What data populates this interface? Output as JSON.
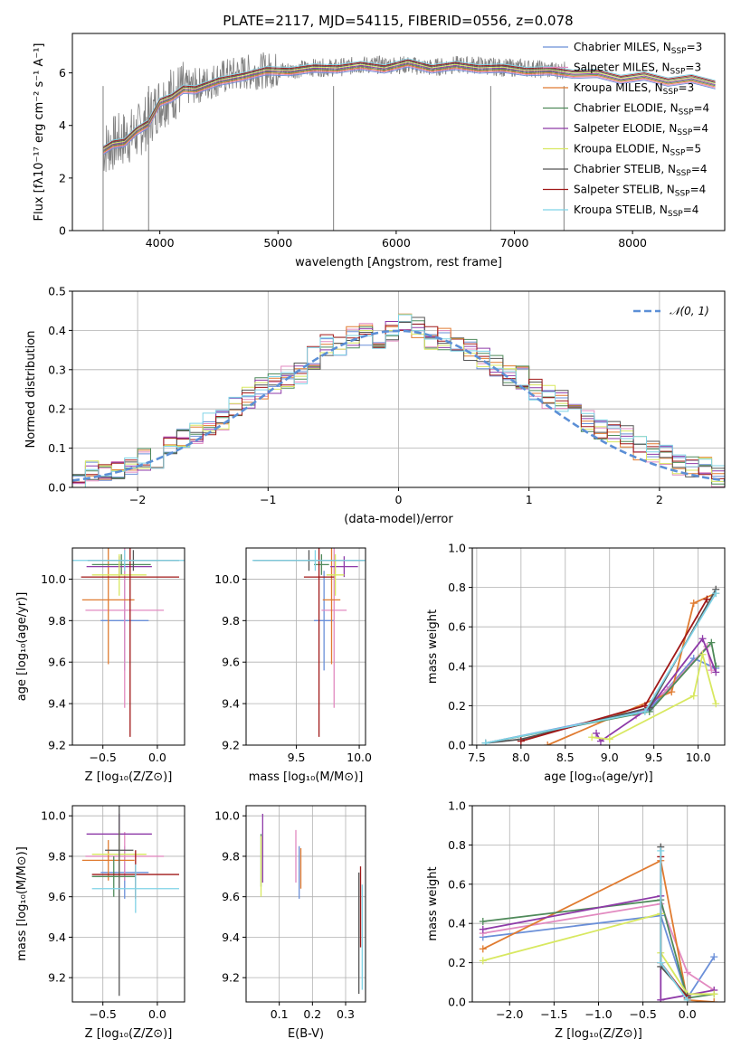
{
  "figure_title": "PLATE=2117, MJD=54115, FIBERID=0556, z=0.078",
  "colors": {
    "Chabrier MILES": "#6a8fd8",
    "Salpeter MILES": "#e28ac0",
    "Kroupa MILES": "#e07b30",
    "Chabrier ELODIE": "#4f8a5a",
    "Salpeter ELODIE": "#8e3aa8",
    "Kroupa ELODIE": "#d8e860",
    "Chabrier STELIB": "#555555",
    "Salpeter STELIB": "#a01818",
    "Kroupa STELIB": "#7fd3e6",
    "data": "#808080",
    "normal_curve": "#5b8fd6"
  },
  "chart_data": [
    {
      "id": "spectrum",
      "type": "line",
      "title": "PLATE=2117, MJD=54115, FIBERID=0556, z=0.078",
      "xlabel": "wavelength [Angstrom, rest frame]",
      "ylabel": "Flux [fλ10⁻¹⁷ erg cm⁻² s⁻¹ A⁻¹]",
      "xlim": [
        3260,
        8780
      ],
      "ylim": [
        0,
        7.5
      ],
      "xticks": [
        4000,
        5000,
        6000,
        7000,
        8000
      ],
      "yticks": [
        0,
        2,
        4,
        6
      ],
      "grid": false,
      "legend_position": "right",
      "legend": [
        {
          "name": "Chabrier MILES, N",
          "sub": "SSP",
          "suffix": "=3"
        },
        {
          "name": "Salpeter MILES, N",
          "sub": "SSP",
          "suffix": "=3"
        },
        {
          "name": "Kroupa MILES, N",
          "sub": "SSP",
          "suffix": "=3"
        },
        {
          "name": "Chabrier ELODIE, N",
          "sub": "SSP",
          "suffix": "=4"
        },
        {
          "name": "Salpeter ELODIE, N",
          "sub": "SSP",
          "suffix": "=4"
        },
        {
          "name": "Kroupa ELODIE, N",
          "sub": "SSP",
          "suffix": "=5"
        },
        {
          "name": "Chabrier STELIB, N",
          "sub": "SSP",
          "suffix": "=4"
        },
        {
          "name": "Salpeter STELIB, N",
          "sub": "SSP",
          "suffix": "=4"
        },
        {
          "name": "Kroupa STELIB, N",
          "sub": "SSP",
          "suffix": "=4"
        }
      ],
      "data_series": {
        "name": "data",
        "x": [
          3520,
          3600,
          3700,
          3800,
          3900,
          4000,
          4100,
          4200,
          4300,
          4400,
          4500,
          4700,
          4900,
          5100,
          5300,
          5500,
          5700,
          5900,
          6100,
          6300,
          6500,
          6700,
          6900,
          7100,
          7300,
          7450
        ],
        "y": [
          3.1,
          3.3,
          3.5,
          3.7,
          4.2,
          4.9,
          5.2,
          5.4,
          5.5,
          5.6,
          5.8,
          6.0,
          6.1,
          6.1,
          6.2,
          6.2,
          6.3,
          6.3,
          6.3,
          6.2,
          6.3,
          6.3,
          6.2,
          6.2,
          6.1,
          6.1
        ]
      },
      "model_series": {
        "x": [
          3520,
          3600,
          3700,
          3800,
          3900,
          4000,
          4100,
          4200,
          4300,
          4500,
          4700,
          4900,
          5100,
          5300,
          5500,
          5700,
          5900,
          6100,
          6300,
          6500,
          6700,
          6900,
          7100,
          7300,
          7500,
          7700,
          7900,
          8100,
          8300,
          8500,
          8700
        ],
        "y": [
          3.1,
          3.2,
          3.4,
          3.7,
          4.1,
          4.8,
          5.1,
          5.3,
          5.4,
          5.6,
          5.9,
          6.0,
          6.1,
          6.1,
          6.2,
          6.2,
          6.2,
          6.3,
          6.2,
          6.2,
          6.2,
          6.1,
          6.1,
          6.0,
          6.0,
          5.9,
          5.8,
          5.8,
          5.7,
          5.7,
          5.6
        ]
      }
    },
    {
      "id": "residuals",
      "type": "line",
      "xlabel": "(data-model)/error",
      "ylabel": "Normed distribution",
      "xlim": [
        -2.5,
        2.5
      ],
      "ylim": [
        0,
        0.5
      ],
      "xticks": [
        -2,
        -1,
        0,
        1,
        2
      ],
      "yticks": [
        0.0,
        0.1,
        0.2,
        0.3,
        0.4,
        0.5
      ],
      "grid": true,
      "legend_position": "top-right",
      "legend": [
        "𝒩(0, 1)"
      ],
      "bin_edges": [
        -2.5,
        -2.4,
        -2.3,
        -2.2,
        -2.1,
        -2.0,
        -1.9,
        -1.8,
        -1.7,
        -1.6,
        -1.5,
        -1.4,
        -1.3,
        -1.2,
        -1.1,
        -1.0,
        -0.9,
        -0.8,
        -0.7,
        -0.6,
        -0.5,
        -0.4,
        -0.3,
        -0.2,
        -0.1,
        0.0,
        0.1,
        0.2,
        0.3,
        0.4,
        0.5,
        0.6,
        0.7,
        0.8,
        0.9,
        1.0,
        1.1,
        1.2,
        1.3,
        1.4,
        1.5,
        1.6,
        1.7,
        1.8,
        1.9,
        2.0,
        2.1,
        2.2,
        2.3,
        2.4,
        2.5
      ],
      "histogram": [
        0.02,
        0.04,
        0.03,
        0.05,
        0.05,
        0.07,
        0.07,
        0.1,
        0.13,
        0.14,
        0.16,
        0.17,
        0.2,
        0.23,
        0.25,
        0.26,
        0.28,
        0.29,
        0.33,
        0.36,
        0.36,
        0.38,
        0.39,
        0.38,
        0.4,
        0.42,
        0.41,
        0.38,
        0.38,
        0.36,
        0.35,
        0.33,
        0.31,
        0.28,
        0.28,
        0.25,
        0.23,
        0.22,
        0.19,
        0.17,
        0.15,
        0.14,
        0.13,
        0.1,
        0.09,
        0.08,
        0.06,
        0.05,
        0.05,
        0.03
      ]
    },
    {
      "id": "age-vs-Z",
      "type": "scatter",
      "xlabel": "Z [log₁₀(Z/Z⊙)]",
      "ylabel": "age  [log₁₀(age/yr)]",
      "xlim": [
        -0.78,
        0.25
      ],
      "ylim": [
        9.2,
        10.15
      ],
      "xticks": [
        -0.5,
        0.0
      ],
      "yticks": [
        9.2,
        9.4,
        9.6,
        9.8,
        10.0
      ],
      "grid": true,
      "points": [
        {
          "series": "Chabrier MILES",
          "x": -0.3,
          "y": 9.8,
          "xerr": 0.22,
          "yerr": 0.24
        },
        {
          "series": "Salpeter MILES",
          "x": -0.3,
          "y": 9.85,
          "xerr": 0.36,
          "yerr": 0.47
        },
        {
          "series": "Kroupa MILES",
          "x": -0.45,
          "y": 9.9,
          "xerr": 0.24,
          "yerr": 0.31
        },
        {
          "series": "Chabrier ELODIE",
          "x": -0.33,
          "y": 10.07,
          "xerr": 0.27,
          "yerr": 0.05
        },
        {
          "series": "Salpeter ELODIE",
          "x": -0.35,
          "y": 10.06,
          "xerr": 0.3,
          "yerr": 0.05
        },
        {
          "series": "Kroupa ELODIE",
          "x": -0.35,
          "y": 10.02,
          "xerr": 0.25,
          "yerr": 0.1
        },
        {
          "series": "Chabrier STELIB",
          "x": -0.22,
          "y": 10.09,
          "xerr": 0.42,
          "yerr": 0.05
        },
        {
          "series": "Salpeter STELIB",
          "x": -0.25,
          "y": 10.01,
          "xerr": 0.45,
          "yerr": 0.77
        },
        {
          "series": "Kroupa STELIB",
          "x": -0.3,
          "y": 10.09,
          "xerr": 0.55,
          "yerr": 0.05
        }
      ]
    },
    {
      "id": "age-vs-mass",
      "type": "scatter",
      "xlabel": "mass [log₁₀(M/M⊙)]",
      "xlim": [
        9.1,
        10.05
      ],
      "ylim": [
        9.2,
        10.15
      ],
      "xticks": [
        9.5,
        10.0
      ],
      "yticks": [
        9.2,
        9.4,
        9.6,
        9.8,
        10.0
      ],
      "grid": true,
      "points": [
        {
          "series": "Chabrier MILES",
          "x": 9.72,
          "y": 9.8,
          "xerr": 0.08,
          "yerr": 0.24
        },
        {
          "series": "Salpeter MILES",
          "x": 9.8,
          "y": 9.85,
          "xerr": 0.1,
          "yerr": 0.47
        },
        {
          "series": "Kroupa MILES",
          "x": 9.78,
          "y": 9.9,
          "xerr": 0.07,
          "yerr": 0.31
        },
        {
          "series": "Chabrier ELODIE",
          "x": 9.7,
          "y": 10.07,
          "xerr": 0.06,
          "yerr": 0.05
        },
        {
          "series": "Salpeter ELODIE",
          "x": 9.88,
          "y": 10.06,
          "xerr": 0.11,
          "yerr": 0.05
        },
        {
          "series": "Kroupa ELODIE",
          "x": 9.81,
          "y": 10.02,
          "xerr": 0.07,
          "yerr": 0.1
        },
        {
          "series": "Chabrier STELIB",
          "x": 9.6,
          "y": 10.09,
          "xerr": 0.44,
          "yerr": 0.05
        },
        {
          "series": "Salpeter STELIB",
          "x": 9.68,
          "y": 10.01,
          "xerr": 0.12,
          "yerr": 0.77
        },
        {
          "series": "Kroupa STELIB",
          "x": 9.65,
          "y": 10.09,
          "xerr": 0.5,
          "yerr": 0.05
        }
      ]
    },
    {
      "id": "massweight-vs-age",
      "type": "line",
      "xlabel": "age  [log₁₀(age/yr)]",
      "ylabel": "mass weight",
      "xlim": [
        7.45,
        10.3
      ],
      "ylim": [
        0,
        1.0
      ],
      "xticks": [
        7.5,
        8.0,
        8.5,
        9.0,
        9.5,
        10.0
      ],
      "yticks": [
        0.0,
        0.2,
        0.4,
        0.6,
        0.8,
        1.0
      ],
      "grid": true,
      "series": [
        {
          "color_key": "Chabrier MILES",
          "x": [
            7.6,
            9.45,
            9.95,
            10.2
          ],
          "y": [
            0.01,
            0.18,
            0.44,
            0.39
          ]
        },
        {
          "color_key": "Salpeter MILES",
          "x": [
            9.3,
            9.65,
            10.1,
            10.15
          ],
          "y": [
            0.15,
            0.28,
            0.5,
            0.38
          ]
        },
        {
          "color_key": "Kroupa MILES",
          "x": [
            8.3,
            9.7,
            9.95,
            10.2
          ],
          "y": [
            0.0,
            0.27,
            0.72,
            0.77
          ]
        },
        {
          "color_key": "Chabrier ELODIE",
          "x": [
            7.6,
            9.45,
            10.15,
            10.2
          ],
          "y": [
            0.01,
            0.17,
            0.52,
            0.4
          ]
        },
        {
          "color_key": "Salpeter ELODIE",
          "x": [
            8.85,
            8.9,
            9.45,
            10.05,
            10.2
          ],
          "y": [
            0.06,
            0.02,
            0.19,
            0.54,
            0.37
          ]
        },
        {
          "color_key": "Kroupa ELODIE",
          "x": [
            8.8,
            9.0,
            9.95,
            10.05,
            10.2
          ],
          "y": [
            0.04,
            0.03,
            0.25,
            0.46,
            0.21
          ]
        },
        {
          "color_key": "Chabrier STELIB",
          "x": [
            7.6,
            8.0,
            9.45,
            10.2
          ],
          "y": [
            0.01,
            0.03,
            0.19,
            0.79
          ]
        },
        {
          "color_key": "Salpeter STELIB",
          "x": [
            8.0,
            9.4,
            10.1
          ],
          "y": [
            0.02,
            0.2,
            0.74
          ]
        },
        {
          "color_key": "Kroupa STELIB",
          "x": [
            7.6,
            9.4,
            10.2
          ],
          "y": [
            0.01,
            0.17,
            0.77
          ]
        }
      ]
    },
    {
      "id": "mass-vs-Z",
      "type": "scatter",
      "xlabel": "Z [log₁₀(Z/Z⊙)]",
      "ylabel": "mass [log₁₀(M/M⊙)]",
      "xlim": [
        -0.78,
        0.25
      ],
      "ylim": [
        9.08,
        10.05
      ],
      "xticks": [
        -0.5,
        0.0
      ],
      "yticks": [
        9.2,
        9.4,
        9.6,
        9.8,
        10.0
      ],
      "grid": true,
      "points": [
        {
          "series": "Chabrier MILES",
          "x": -0.3,
          "y": 9.72,
          "xerr": 0.22,
          "yerr": 0.13
        },
        {
          "series": "Salpeter MILES",
          "x": -0.3,
          "y": 9.8,
          "xerr": 0.36,
          "yerr": 0.12
        },
        {
          "series": "Kroupa MILES",
          "x": -0.45,
          "y": 9.78,
          "xerr": 0.24,
          "yerr": 0.1
        },
        {
          "series": "Chabrier ELODIE",
          "x": -0.4,
          "y": 9.7,
          "xerr": 0.2,
          "yerr": 0.1
        },
        {
          "series": "Salpeter ELODIE",
          "x": -0.35,
          "y": 9.91,
          "xerr": 0.3,
          "yerr": 0.1
        },
        {
          "series": "Kroupa ELODIE",
          "x": -0.35,
          "y": 9.81,
          "xerr": 0.25,
          "yerr": 0.12
        },
        {
          "series": "Chabrier STELIB",
          "x": -0.35,
          "y": 9.83,
          "xerr": 0.13,
          "yerr": 0.72
        },
        {
          "series": "Salpeter STELIB",
          "x": -0.2,
          "y": 9.71,
          "xerr": 0.4,
          "yerr": 0.12
        },
        {
          "series": "Kroupa STELIB",
          "x": -0.2,
          "y": 9.64,
          "xerr": 0.4,
          "yerr": 0.12
        }
      ]
    },
    {
      "id": "mass-vs-EBV",
      "type": "scatter",
      "xlabel": "E(B-V)",
      "xlim": [
        0.0,
        0.36
      ],
      "ylim": [
        9.08,
        10.05
      ],
      "xticks": [
        0.1,
        0.2,
        0.3
      ],
      "yticks": [
        9.2,
        9.4,
        9.6,
        9.8,
        10.0
      ],
      "grid": true,
      "points": [
        {
          "series": "Chabrier MILES",
          "x": 0.16,
          "y": 9.72,
          "xerr": 0.0,
          "yerr": 0.13
        },
        {
          "series": "Salpeter MILES",
          "x": 0.15,
          "y": 9.8,
          "xerr": 0.0,
          "yerr": 0.13
        },
        {
          "series": "Kroupa MILES",
          "x": 0.165,
          "y": 9.74,
          "xerr": 0.0,
          "yerr": 0.1
        },
        {
          "series": "Chabrier ELODIE",
          "x": 0.045,
          "y": 9.78,
          "xerr": 0.0,
          "yerr": 0.13
        },
        {
          "series": "Salpeter ELODIE",
          "x": 0.05,
          "y": 9.84,
          "xerr": 0.0,
          "yerr": 0.17
        },
        {
          "series": "Kroupa ELODIE",
          "x": 0.045,
          "y": 9.75,
          "xerr": 0.0,
          "yerr": 0.15
        },
        {
          "series": "Chabrier STELIB",
          "x": 0.34,
          "y": 9.42,
          "xerr": 0.0,
          "yerr": 0.3
        },
        {
          "series": "Salpeter STELIB",
          "x": 0.345,
          "y": 9.55,
          "xerr": 0.0,
          "yerr": 0.2
        },
        {
          "series": "Kroupa STELIB",
          "x": 0.35,
          "y": 9.4,
          "xerr": 0.0,
          "yerr": 0.26
        }
      ]
    },
    {
      "id": "massweight-vs-Z",
      "type": "line",
      "xlabel": "Z [log₁₀(Z/Z⊙)]",
      "ylabel": "mass weight",
      "xlim": [
        -2.42,
        0.42
      ],
      "ylim": [
        0,
        1.0
      ],
      "xticks": [
        -2.0,
        -1.5,
        -1.0,
        -0.5,
        0.0
      ],
      "yticks": [
        0.0,
        0.2,
        0.4,
        0.6,
        0.8,
        1.0
      ],
      "grid": true,
      "series": [
        {
          "color_key": "Chabrier MILES",
          "x": [
            -2.3,
            -0.3,
            0.0,
            0.3
          ],
          "y": [
            0.33,
            0.44,
            0.02,
            0.23
          ]
        },
        {
          "color_key": "Salpeter MILES",
          "x": [
            -2.3,
            -0.3,
            0.0,
            0.3
          ],
          "y": [
            0.35,
            0.5,
            0.15,
            0.06
          ]
        },
        {
          "color_key": "Kroupa MILES",
          "x": [
            -2.3,
            -0.3,
            0.0,
            0.3
          ],
          "y": [
            0.27,
            0.72,
            0.01,
            0.0
          ]
        },
        {
          "color_key": "Chabrier ELODIE",
          "x": [
            -2.3,
            -0.3,
            0.0,
            0.3
          ],
          "y": [
            0.41,
            0.52,
            0.02,
            0.04
          ]
        },
        {
          "color_key": "Salpeter ELODIE",
          "x": [
            -2.3,
            -0.3,
            -0.3,
            0.3
          ],
          "y": [
            0.37,
            0.54,
            0.01,
            0.06
          ]
        },
        {
          "color_key": "Kroupa ELODIE",
          "x": [
            -2.3,
            -0.3,
            -0.3,
            0.0,
            0.3
          ],
          "y": [
            0.21,
            0.45,
            0.25,
            0.04,
            0.04
          ]
        },
        {
          "color_key": "Chabrier STELIB",
          "x": [
            -0.3,
            -0.3,
            0.0
          ],
          "y": [
            0.79,
            0.18,
            0.03
          ]
        },
        {
          "color_key": "Salpeter STELIB",
          "x": [
            -0.3,
            -0.3,
            0.0
          ],
          "y": [
            0.74,
            0.2,
            0.02
          ]
        },
        {
          "color_key": "Kroupa STELIB",
          "x": [
            -0.3,
            -0.3,
            0.0
          ],
          "y": [
            0.77,
            0.2,
            0.01
          ]
        }
      ]
    }
  ]
}
